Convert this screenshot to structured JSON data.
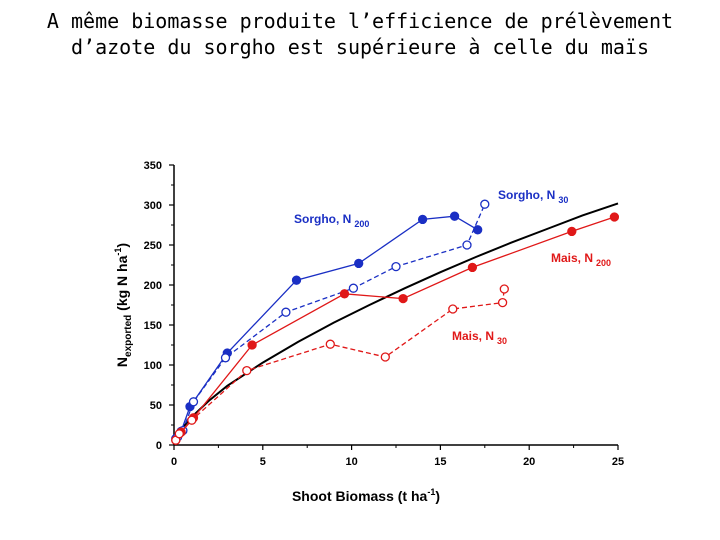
{
  "title_lines": [
    "A même biomasse produite l’efficience de prélèvement",
    "d’azote du sorgho est supérieure à celle du maïs"
  ],
  "chart_data": {
    "type": "scatter",
    "xlabel": {
      "main": "Shoot Biomass (t ha",
      "sup": "-1",
      "end": ")"
    },
    "ylabel": {
      "main": "N",
      "sub": "exported",
      "rest": " (kg N ha",
      "sup": "-1",
      "end": ")"
    },
    "xlim": [
      0,
      25
    ],
    "ylim": [
      0,
      350
    ],
    "xticks": [
      0,
      5,
      10,
      15,
      20,
      25
    ],
    "yticks": [
      0,
      50,
      100,
      150,
      200,
      250,
      300,
      350
    ],
    "grid": false,
    "colors": {
      "blue": "#1a2fc4",
      "red": "#e01818",
      "black": "#000000"
    },
    "series": [
      {
        "name": "Sorgho, N",
        "name_sub": "200",
        "color": "#1a2fc4",
        "marker": "filled",
        "dash": false,
        "points": [
          [
            0.1,
            8
          ],
          [
            0.4,
            17
          ],
          [
            0.9,
            48
          ],
          [
            3.0,
            115
          ],
          [
            6.9,
            206
          ],
          [
            10.4,
            227
          ],
          [
            14.0,
            282
          ],
          [
            15.8,
            286
          ],
          [
            17.1,
            269
          ]
        ]
      },
      {
        "name": "Sorgho, N",
        "name_sub": "30",
        "color": "#1a2fc4",
        "marker": "open",
        "dash": true,
        "points": [
          [
            0.2,
            10
          ],
          [
            0.5,
            18
          ],
          [
            1.1,
            54
          ],
          [
            2.9,
            109
          ],
          [
            6.3,
            166
          ],
          [
            10.1,
            196
          ],
          [
            12.5,
            223
          ],
          [
            16.5,
            250
          ],
          [
            17.5,
            301
          ]
        ]
      },
      {
        "name": "Mais, N",
        "name_sub": "200",
        "color": "#e01818",
        "marker": "filled",
        "dash": false,
        "points": [
          [
            0.1,
            6
          ],
          [
            0.4,
            16
          ],
          [
            1.1,
            34
          ],
          [
            4.4,
            125
          ],
          [
            9.6,
            189
          ],
          [
            12.9,
            183
          ],
          [
            16.8,
            222
          ],
          [
            22.4,
            267
          ],
          [
            24.8,
            285
          ]
        ]
      },
      {
        "name": "Mais, N",
        "name_sub": "30",
        "color": "#e01818",
        "marker": "open",
        "dash": true,
        "points": [
          [
            0.1,
            6
          ],
          [
            0.3,
            14
          ],
          [
            1.0,
            31
          ],
          [
            4.1,
            93
          ],
          [
            8.8,
            126
          ],
          [
            11.9,
            110
          ],
          [
            15.7,
            170
          ],
          [
            18.5,
            178
          ],
          [
            18.6,
            195
          ]
        ]
      }
    ],
    "fit_curve": {
      "color": "#000000",
      "points": [
        [
          0,
          0
        ],
        [
          0.5,
          22
        ],
        [
          1,
          35
        ],
        [
          2,
          56
        ],
        [
          3,
          74
        ],
        [
          5,
          103
        ],
        [
          7,
          129
        ],
        [
          9,
          153
        ],
        [
          11,
          175
        ],
        [
          13,
          196
        ],
        [
          15,
          216
        ],
        [
          17,
          235
        ],
        [
          19,
          253
        ],
        [
          21,
          270
        ],
        [
          23,
          287
        ],
        [
          25,
          302
        ]
      ]
    }
  }
}
